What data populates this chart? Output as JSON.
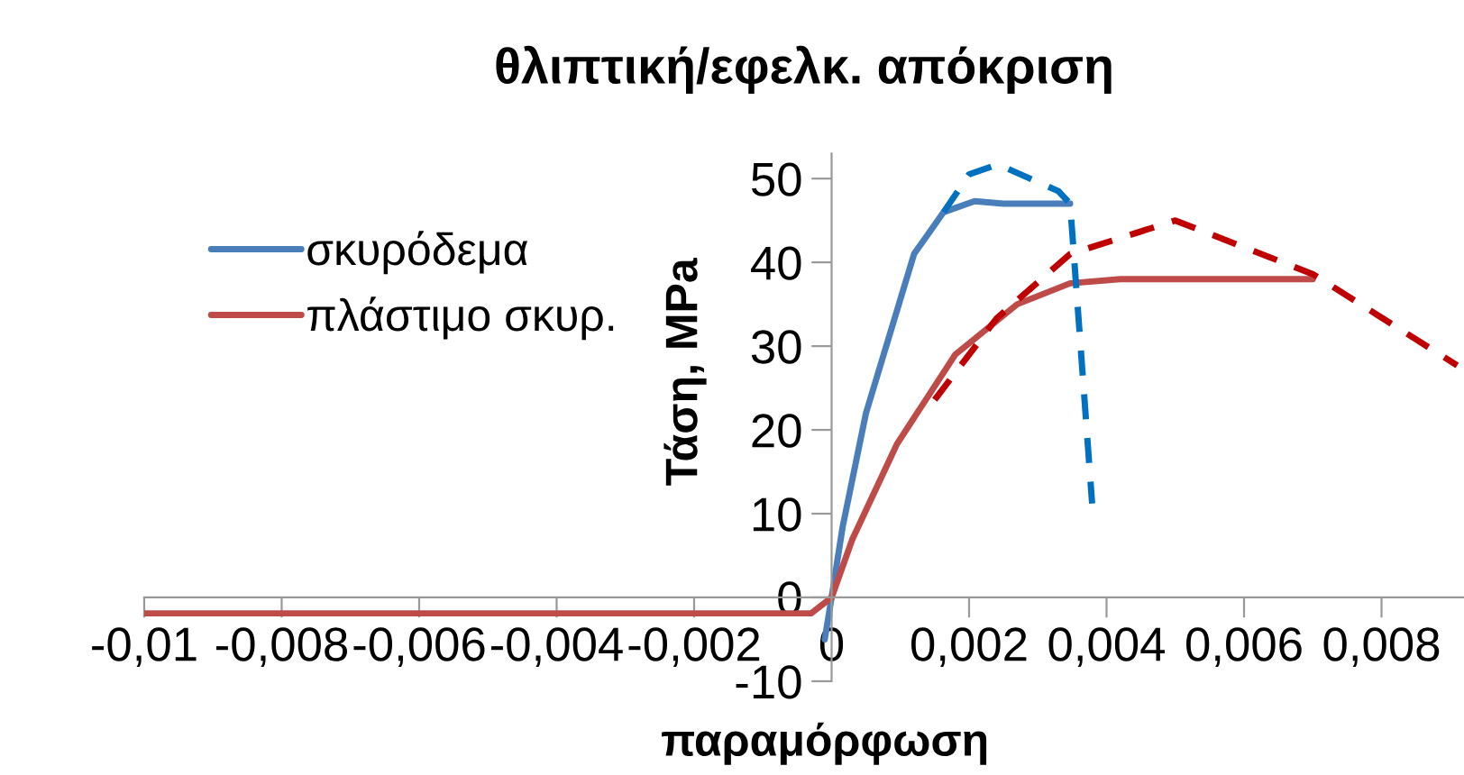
{
  "chart_data": {
    "type": "line",
    "title": "θλιπτική/εφελκ. απόκριση",
    "xlabel": "παραμόρφωση",
    "ylabel": "Τάση, MPa",
    "series": [
      {
        "name": "σκυρόδεμα",
        "color": "#4a7ebb",
        "x": [
          -0.0001,
          0,
          0.00016,
          0.0005,
          0.0012,
          0.00163,
          0.00208,
          0.0025,
          0.00347
        ],
        "values": [
          -5,
          0,
          8.4,
          22,
          41,
          46,
          47.3,
          47,
          47
        ]
      },
      {
        "name": "πλάστιμο σκυρ.",
        "color": "#be4b48",
        "x": [
          -0.01,
          -0.0003,
          0,
          0.0003,
          0.00095,
          0.0018,
          0.0027,
          0.00347,
          0.0042,
          0.007
        ],
        "values": [
          -1.9,
          -1.9,
          0,
          6.9,
          18.3,
          29,
          35,
          37.5,
          38,
          38
        ]
      },
      {
        "color": "#0070c0",
        "line_style": "dashed",
        "x": [
          0.00163,
          0.002,
          0.00242,
          0.0033,
          0.00347,
          0.00379
        ],
        "values": [
          46,
          50.5,
          51.7,
          48.5,
          47,
          11.2
        ]
      },
      {
        "color": "#c00000",
        "line_style": "dashed",
        "x": [
          0.0015,
          0.0024,
          0.00347,
          0.005,
          0.007,
          0.0091
        ],
        "values": [
          23.6,
          33.3,
          41,
          45,
          38.6,
          27.7
        ]
      }
    ],
    "xlim": [
      -0.01,
      0.0092
    ],
    "ylim": [
      -10,
      53
    ],
    "xticks": [
      {
        "value": -0.01,
        "label": "-0,01"
      },
      {
        "value": -0.008,
        "label": "-0,008"
      },
      {
        "value": -0.006,
        "label": "-0,006"
      },
      {
        "value": -0.004,
        "label": "-0,004"
      },
      {
        "value": -0.002,
        "label": "-0,002"
      },
      0,
      {
        "value": 0.002,
        "label": "0,002"
      },
      {
        "value": 0.004,
        "label": "0,004"
      },
      {
        "value": 0.006,
        "label": "0,006"
      },
      {
        "value": 0.008,
        "label": "0,008"
      }
    ],
    "yticks": [
      -10,
      0,
      10,
      20,
      30,
      40,
      50
    ],
    "legend": "top left",
    "grid": false,
    "marker": "none",
    "line_style": "solid"
  }
}
